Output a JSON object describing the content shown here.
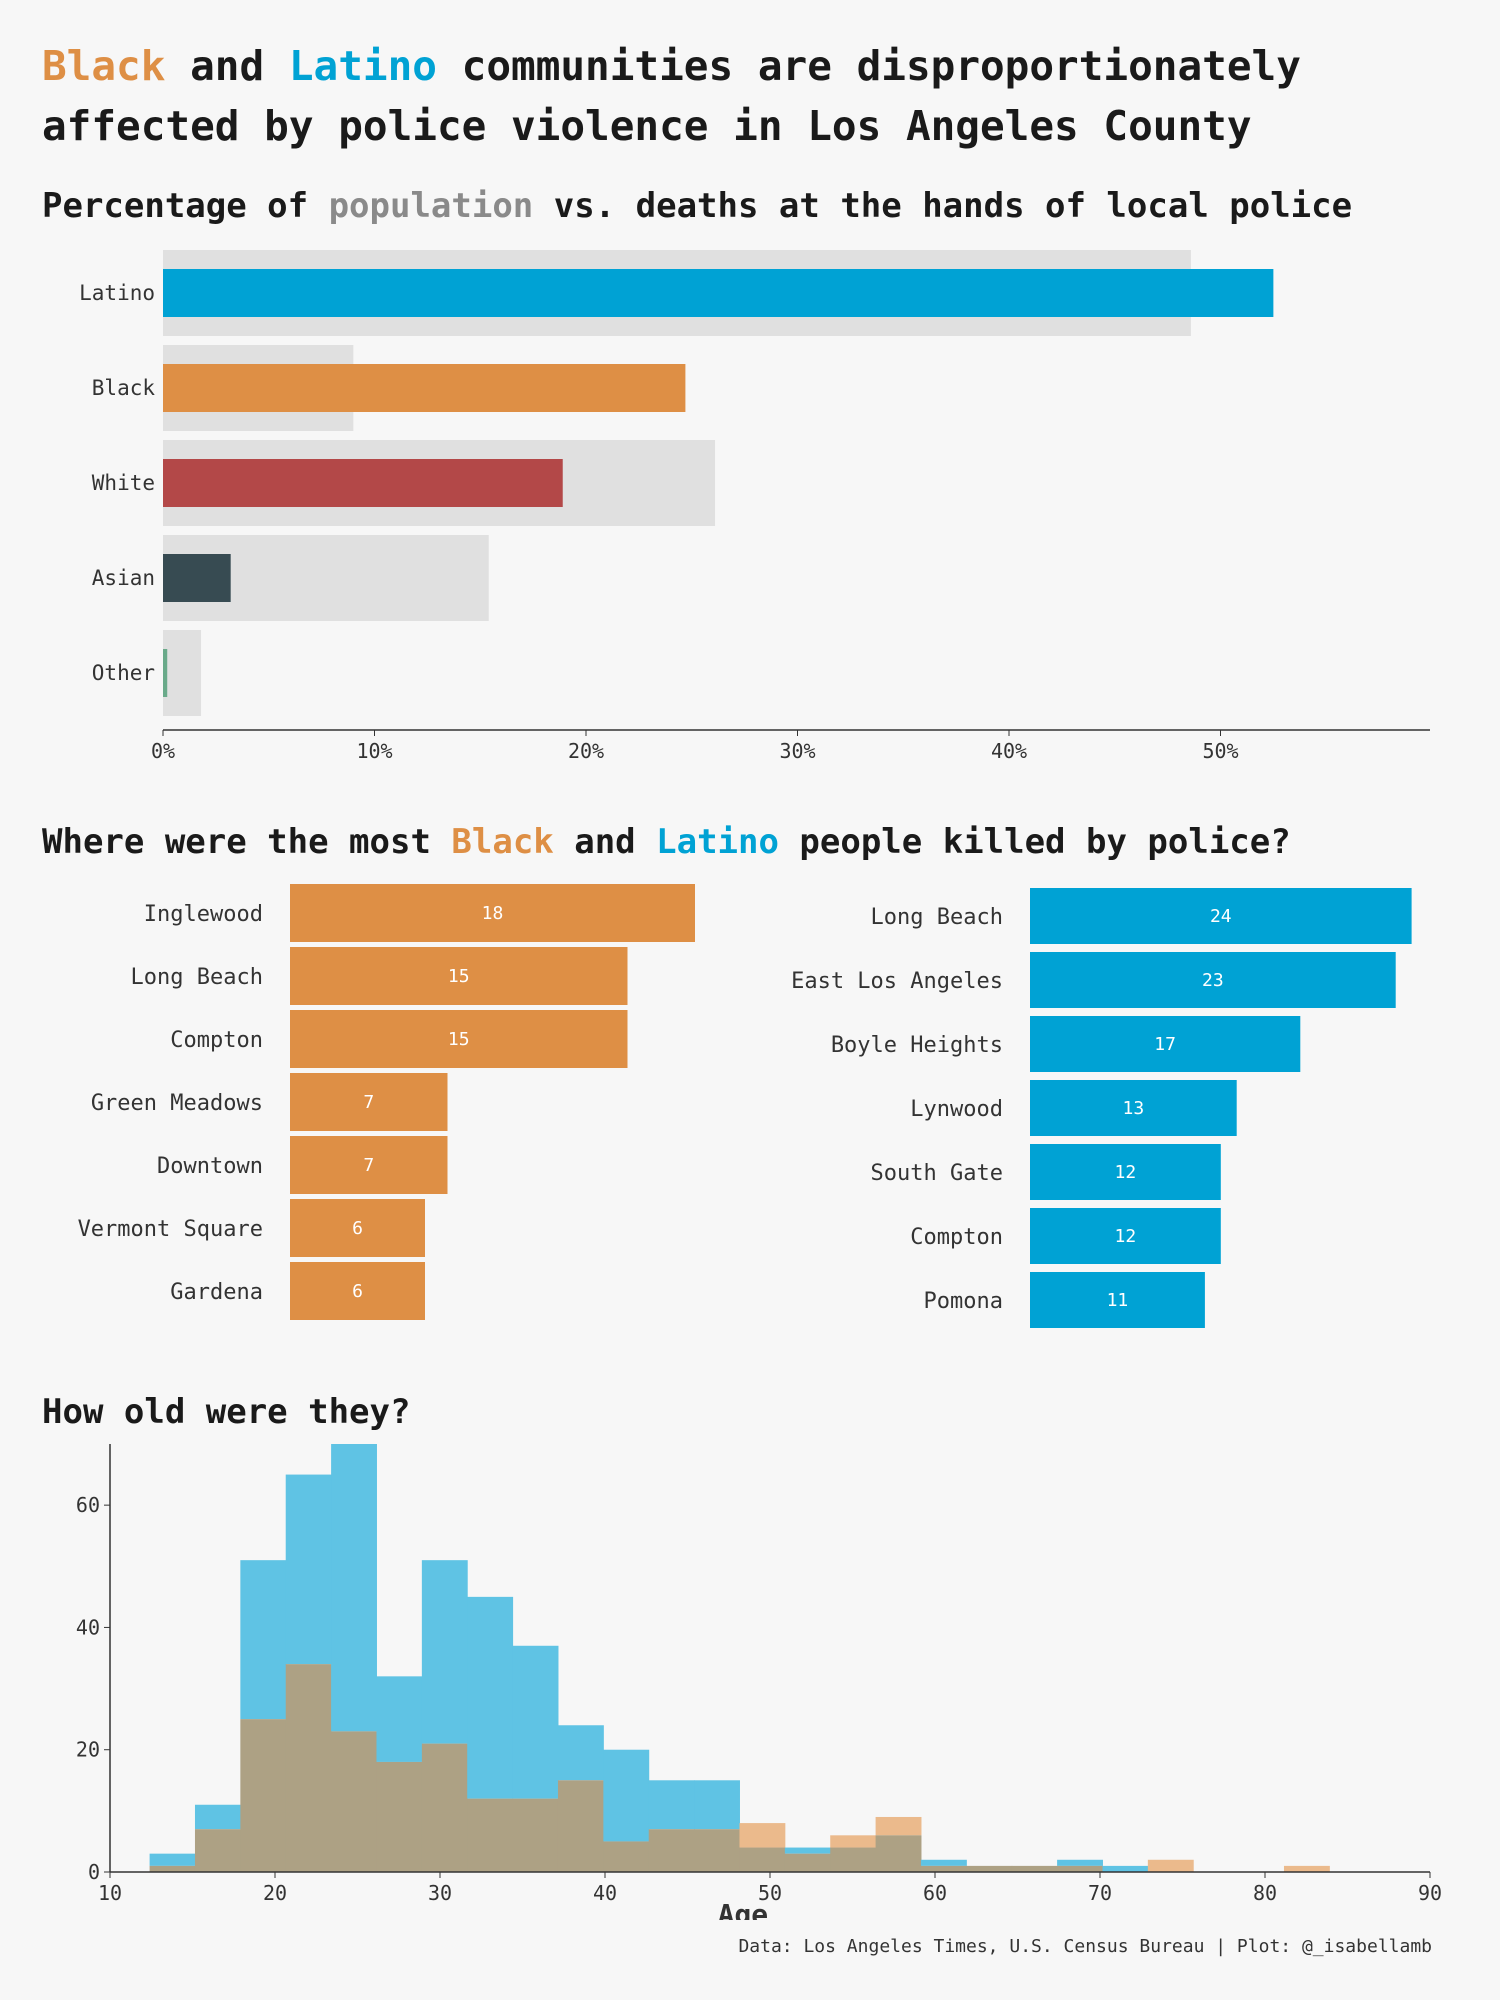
{
  "title": {
    "w1": "Black",
    "w2": " and ",
    "w3": "Latino",
    "w4": " communities are disproportionately",
    "line2": "affected by police violence in Los Angeles County"
  },
  "section1": {
    "a": "Percentage of ",
    "b": "population",
    "c": " vs. deaths at the hands of local police"
  },
  "section2": {
    "a": "Where were the most ",
    "b": "Black",
    "c": " and ",
    "d": "Latino",
    "e": " people killed by police?"
  },
  "section3": {
    "title": "How old were they?"
  },
  "source": "Data: Los Angeles Times, U.S. Census Bureau | Plot: @_isabellamb",
  "colors": {
    "black": "#de8f45",
    "latino": "#00a2d4",
    "white": "#b34848",
    "asian": "#374b52",
    "other": "#6aaa8a",
    "population": "#e0e0e0",
    "hist_latino": "#5fc3e4",
    "hist_black": "#ebba8c",
    "hist_overlap": "#ada184"
  },
  "chart_data": [
    {
      "type": "bar",
      "orientation": "horizontal",
      "categories": [
        "Latino",
        "Black",
        "White",
        "Asian",
        "Other"
      ],
      "series": [
        {
          "name": "population",
          "values": [
            48.6,
            9.0,
            26.1,
            15.4,
            1.8
          ]
        },
        {
          "name": "deaths",
          "values": [
            52.5,
            24.7,
            18.9,
            3.2,
            0.2
          ]
        }
      ],
      "xlim": [
        0,
        60
      ],
      "xticks": [
        0,
        10,
        20,
        30,
        40,
        50
      ],
      "xtick_labels": [
        "0%",
        "10%",
        "20%",
        "30%",
        "40%",
        "50%"
      ]
    },
    {
      "type": "bar",
      "orientation": "horizontal",
      "categories": [
        "Inglewood",
        "Long Beach",
        "Compton",
        "Green Meadows",
        "Downtown",
        "Vermont Square",
        "Gardena"
      ],
      "values": [
        18,
        15,
        15,
        7,
        7,
        6,
        6
      ]
    },
    {
      "type": "bar",
      "orientation": "horizontal",
      "categories": [
        "Long Beach",
        "East Los Angeles",
        "Boyle Heights",
        "Lynwood",
        "South Gate",
        "Compton",
        "Pomona"
      ],
      "values": [
        24,
        23,
        17,
        13,
        12,
        12,
        11
      ]
    },
    {
      "type": "bar",
      "histogram": true,
      "xlabel": "Age",
      "bin_edges": [
        12.4,
        15.15,
        17.9,
        20.65,
        23.4,
        26.15,
        28.9,
        31.65,
        34.4,
        37.15,
        39.9,
        42.65,
        45.4,
        48.15,
        50.9,
        53.65,
        56.4,
        59.15,
        61.9,
        64.65,
        67.4,
        70.15,
        72.9,
        75.65,
        78.4,
        81.15,
        83.9
      ],
      "series": [
        {
          "values": [
            3,
            11,
            51,
            65,
            70,
            32,
            51,
            45,
            37,
            24,
            20,
            15,
            15,
            4,
            4,
            4,
            6,
            2,
            1,
            1,
            2,
            1,
            0,
            0,
            0,
            0
          ]
        },
        {
          "values": [
            1,
            7,
            25,
            34,
            23,
            18,
            21,
            12,
            12,
            15,
            5,
            7,
            7,
            8,
            3,
            6,
            9,
            1,
            1,
            1,
            1,
            0,
            2,
            0,
            0,
            1
          ]
        }
      ],
      "xlim": [
        10,
        90
      ],
      "ylim": [
        0,
        70
      ],
      "xticks": [
        10,
        20,
        30,
        40,
        50,
        60,
        70,
        80,
        90
      ],
      "yticks": [
        0,
        20,
        40,
        60
      ]
    }
  ]
}
